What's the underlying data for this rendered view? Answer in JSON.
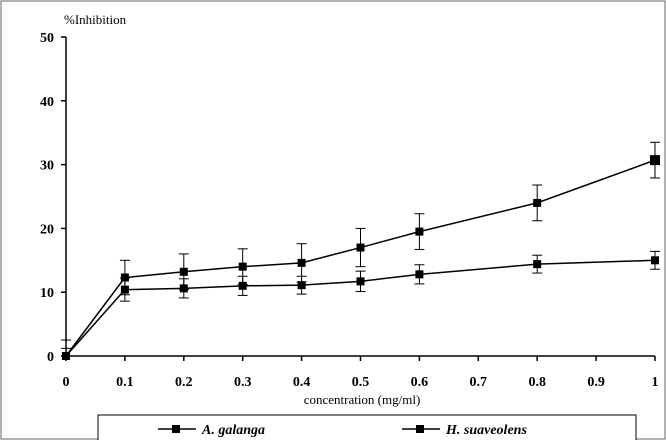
{
  "chart_data": {
    "type": "line",
    "title": "",
    "ylabel": "%Inhibition",
    "xlabel": "concentration (mg/ml)",
    "ylim": [
      0,
      50
    ],
    "xlim": [
      0,
      1
    ],
    "y_ticks": [
      0,
      10,
      20,
      30,
      40,
      50
    ],
    "x_ticks": [
      0,
      0.1,
      0.2,
      0.3,
      0.4,
      0.5,
      0.6,
      0.7,
      0.8,
      0.9,
      1
    ],
    "x_tick_labels": [
      "0",
      "0.1",
      "0.2",
      "0.3",
      "0.4",
      "0.5",
      "0.6",
      "0.7",
      "0.8",
      "0.9",
      "1"
    ],
    "y_tick_labels": [
      "0",
      "10",
      "20",
      "30",
      "40",
      "50"
    ],
    "grid": false,
    "legend_position": "bottom",
    "series": [
      {
        "name": "A. galanga",
        "color": "#000000",
        "marker": "square",
        "x": [
          0,
          0.1,
          0.2,
          0.3,
          0.4,
          0.5,
          0.6,
          0.8,
          1
        ],
        "y": [
          0,
          12.3,
          13.2,
          14.0,
          14.6,
          17.0,
          19.5,
          24.0,
          30.7
        ],
        "error": [
          2.5,
          2.7,
          2.8,
          2.8,
          3.0,
          3.0,
          2.8,
          2.8,
          2.8
        ]
      },
      {
        "name": "H. suaveolens",
        "color": "#000000",
        "marker": "square",
        "x": [
          0,
          0.1,
          0.2,
          0.3,
          0.4,
          0.5,
          0.6,
          0.8,
          1
        ],
        "y": [
          0,
          10.4,
          10.6,
          11.0,
          11.1,
          11.7,
          12.8,
          14.4,
          15.0
        ],
        "error": [
          1.2,
          1.8,
          1.5,
          1.5,
          1.4,
          1.6,
          1.5,
          1.4,
          1.4
        ]
      }
    ]
  }
}
